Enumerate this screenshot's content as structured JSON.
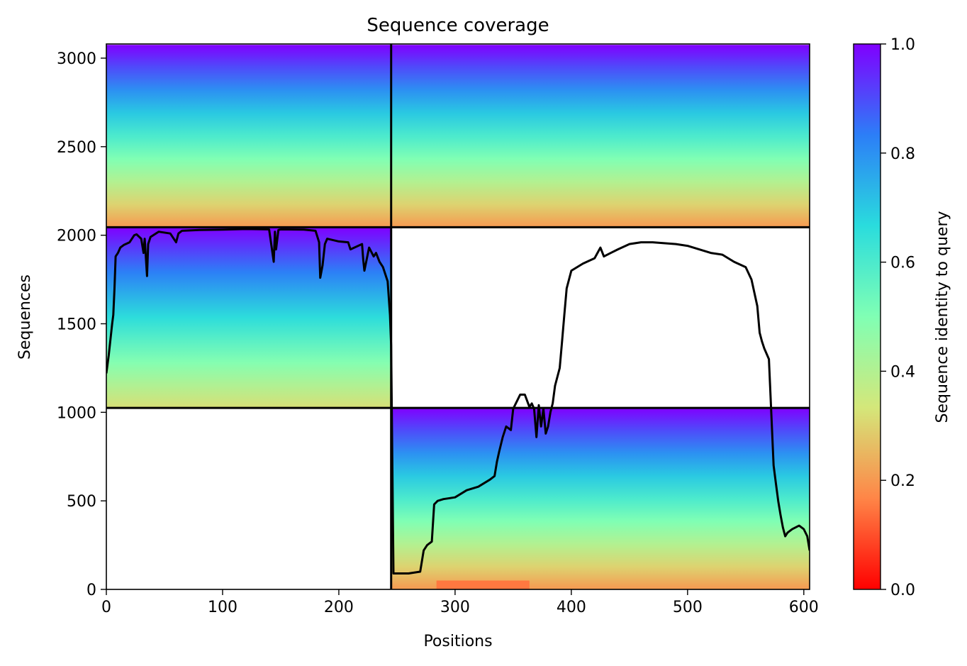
{
  "chart_data": {
    "type": "heatmap",
    "title": "Sequence coverage",
    "xlabel": "Positions",
    "ylabel": "Sequences",
    "colorbar_label": "Sequence identity to query",
    "xlim": [
      0,
      605
    ],
    "ylim": [
      0,
      3080
    ],
    "xticks": [
      0,
      100,
      200,
      300,
      400,
      500,
      600
    ],
    "yticks": [
      0,
      500,
      1000,
      1500,
      2000,
      2500,
      3000
    ],
    "colorbar_ticks": [
      0.0,
      0.2,
      0.4,
      0.6,
      0.8,
      1.0
    ],
    "colorbar_tick_labels": [
      "0.0",
      "0.2",
      "0.4",
      "0.6",
      "0.8",
      "1.0"
    ],
    "colormap": "rainbow_r",
    "colormap_stops": [
      "#ff0000",
      "#ff8547",
      "#d4e77a",
      "#80ffb4",
      "#2adcdd",
      "#2c7ef7",
      "#8000ff"
    ],
    "chain_boundaries_x": [
      245
    ],
    "chain_boundaries_y": [
      1025,
      2045
    ],
    "blocks": [
      {
        "x": [
          0,
          245
        ],
        "y": [
          2045,
          3075
        ],
        "identity_top": 1.0,
        "identity_bottom": 0.2
      },
      {
        "x": [
          245,
          605
        ],
        "y": [
          2045,
          3075
        ],
        "identity_top": 1.0,
        "identity_bottom": 0.2
      },
      {
        "x": [
          0,
          245
        ],
        "y": [
          1025,
          2045
        ],
        "identity_top": 1.0,
        "identity_bottom": 0.32
      },
      {
        "x": [
          245,
          605
        ],
        "y": [
          0,
          1025
        ],
        "identity_top": 1.0,
        "identity_bottom": 0.2
      }
    ],
    "coverage_line": {
      "x": [
        0,
        2,
        5,
        6,
        7,
        8,
        10,
        12,
        15,
        20,
        24,
        26,
        30,
        32,
        33,
        35,
        36,
        38,
        45,
        55,
        60,
        62,
        65,
        80,
        100,
        120,
        140,
        144,
        145,
        146,
        148,
        150,
        170,
        180,
        183,
        184,
        186,
        188,
        190,
        200,
        208,
        210,
        220,
        221,
        222,
        226,
        230,
        232,
        235,
        238,
        240,
        242,
        244,
        245,
        247,
        250,
        260,
        270,
        273,
        276,
        280,
        282,
        285,
        290,
        300,
        310,
        320,
        330,
        334,
        336,
        338,
        341,
        344,
        348,
        350,
        356,
        360,
        364,
        366,
        368,
        370,
        372,
        374,
        376,
        378,
        380,
        382,
        384,
        386,
        390,
        392,
        394,
        396,
        400,
        410,
        420,
        425,
        428,
        431,
        434,
        440,
        450,
        460,
        470,
        480,
        490,
        500,
        510,
        520,
        530,
        540,
        550,
        555,
        560,
        562,
        564,
        566,
        570,
        572,
        574,
        576,
        578,
        580,
        582,
        584,
        586,
        590,
        596,
        600,
        603,
        605
      ],
      "y": [
        1220,
        1320,
        1500,
        1550,
        1700,
        1880,
        1900,
        1930,
        1945,
        1960,
        2000,
        2005,
        1980,
        1900,
        1980,
        1770,
        1950,
        1990,
        2020,
        2010,
        1960,
        2010,
        2025,
        2030,
        2032,
        2035,
        2033,
        1850,
        2020,
        1920,
        2030,
        2033,
        2032,
        2025,
        1960,
        1760,
        1830,
        1950,
        1980,
        1965,
        1960,
        1920,
        1950,
        1860,
        1800,
        1930,
        1880,
        1900,
        1850,
        1820,
        1780,
        1740,
        1550,
        1380,
        90,
        90,
        90,
        100,
        220,
        250,
        270,
        480,
        500,
        510,
        520,
        560,
        580,
        620,
        640,
        720,
        780,
        860,
        920,
        900,
        1020,
        1100,
        1100,
        1030,
        1050,
        1020,
        860,
        1040,
        920,
        1020,
        880,
        920,
        1000,
        1050,
        1150,
        1250,
        1400,
        1550,
        1700,
        1800,
        1840,
        1870,
        1930,
        1880,
        1890,
        1900,
        1920,
        1950,
        1960,
        1960,
        1955,
        1950,
        1940,
        1920,
        1900,
        1890,
        1850,
        1820,
        1750,
        1600,
        1450,
        1400,
        1360,
        1300,
        1000,
        700,
        600,
        500,
        420,
        350,
        300,
        320,
        340,
        360,
        340,
        300,
        220
      ]
    },
    "colorbar_exception_bar": {
      "x": [
        284,
        364
      ],
      "y": [
        0,
        50
      ],
      "identity": 0.15
    }
  }
}
